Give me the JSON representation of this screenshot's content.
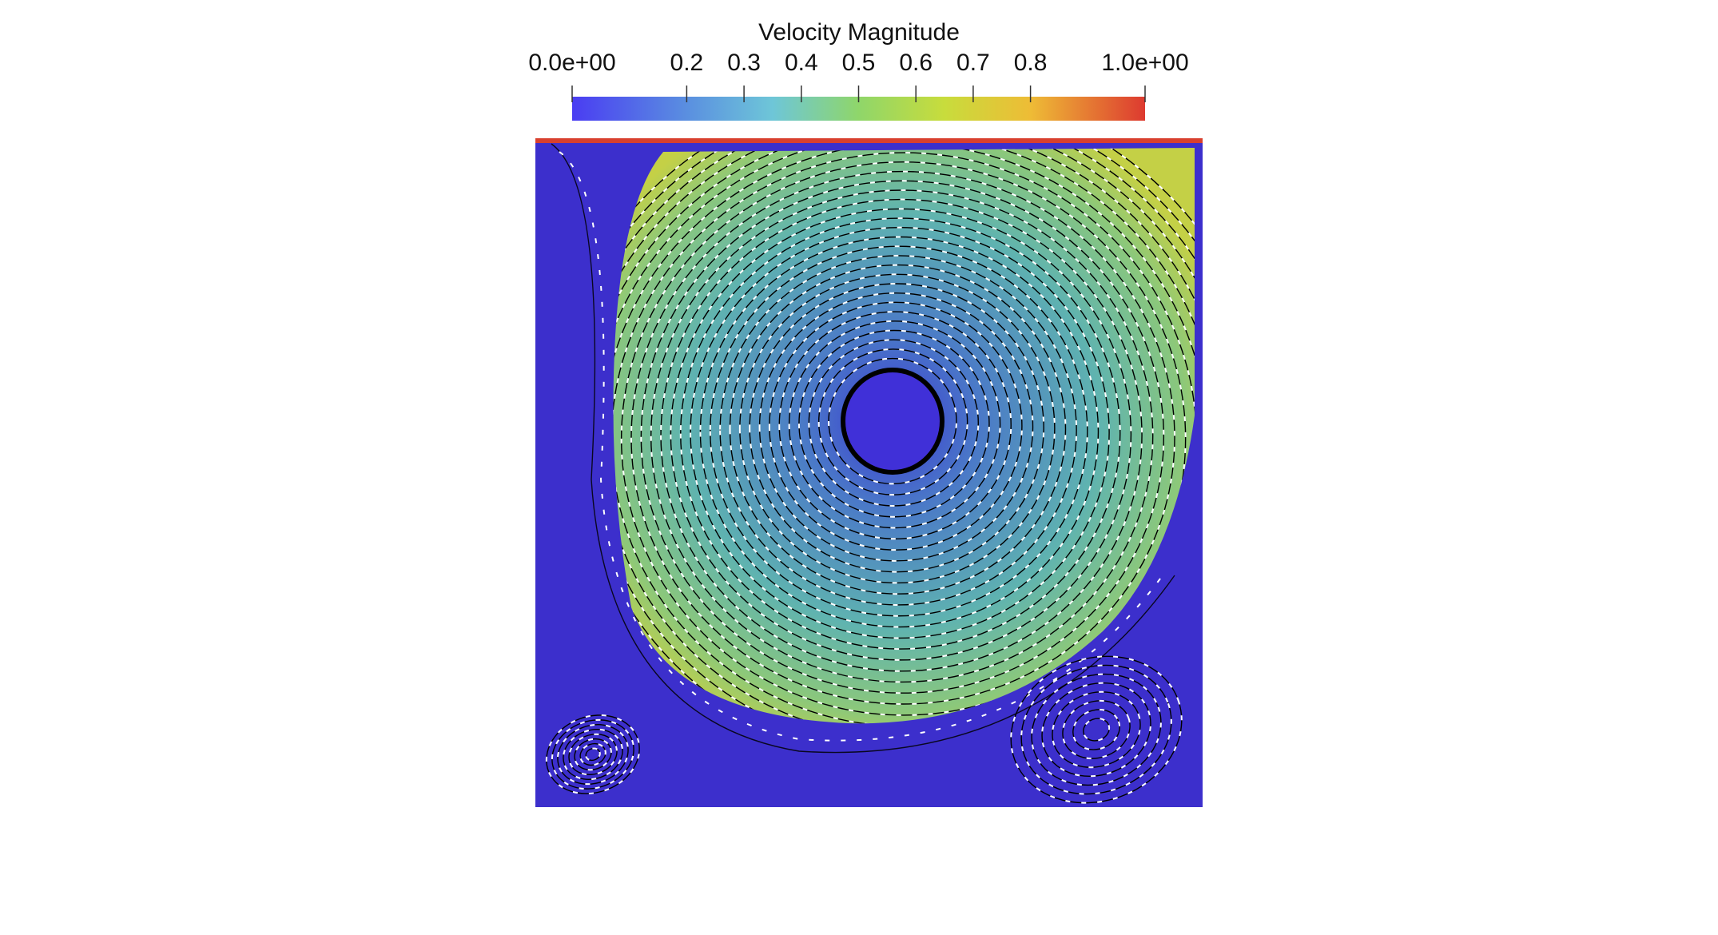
{
  "colorbar": {
    "title": "Velocity Magnitude",
    "range": [
      0,
      1
    ],
    "ticks": [
      {
        "value": 0,
        "label": "0.0e+00"
      },
      0.2,
      0.3,
      0.4,
      0.5,
      0.6,
      0.7,
      0.8,
      {
        "value": 1,
        "label": "1.0e+00"
      }
    ]
  }
}
